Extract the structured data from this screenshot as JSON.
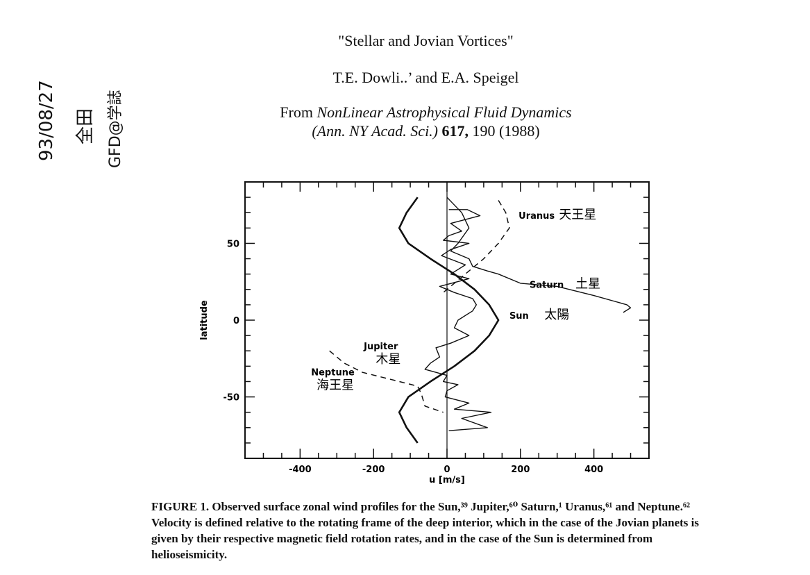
{
  "header": {
    "title": "\"Stellar and Jovian Vortices\"",
    "authors": "T.E. Dowli..’ and E.A. Speigel",
    "source_prefix": "From ",
    "source_book": "NonLinear Astrophysical Fluid Dynamics",
    "source_journal": "(Ann. NY Acad. Sci.)",
    "source_volume": "617,",
    "source_pages_year": "190 (1988)"
  },
  "handwritten_notes": {
    "date": "93/08/27",
    "name": "全田",
    "note": "GFD@学誌"
  },
  "chart_data": {
    "type": "line",
    "xlabel": "u [m/s]",
    "ylabel": "latitude",
    "xlim": [
      -550,
      550
    ],
    "ylim": [
      -90,
      90
    ],
    "x_ticks": [
      -400,
      -200,
      0,
      200,
      400
    ],
    "x_tick_labels": [
      "-400",
      "-200",
      "0",
      "200",
      "400"
    ],
    "y_ticks": [
      -50,
      0,
      50
    ],
    "y_tick_labels": [
      "-50",
      "0",
      "50"
    ],
    "grid": false,
    "series": [
      {
        "name": "Sun",
        "annotation": "太陽",
        "style": "solid-thick",
        "points": [
          [
            -80,
            80
          ],
          [
            -110,
            70
          ],
          [
            -130,
            60
          ],
          [
            -105,
            50
          ],
          [
            -45,
            40
          ],
          [
            20,
            30
          ],
          [
            75,
            20
          ],
          [
            115,
            10
          ],
          [
            140,
            0
          ],
          [
            115,
            -10
          ],
          [
            75,
            -20
          ],
          [
            20,
            -30
          ],
          [
            -45,
            -40
          ],
          [
            -105,
            -50
          ],
          [
            -130,
            -60
          ],
          [
            -110,
            -70
          ],
          [
            -80,
            -80
          ]
        ]
      },
      {
        "name": "Jupiter",
        "annotation": "木星",
        "style": "solid-thin",
        "points": [
          [
            5,
            72
          ],
          [
            55,
            72
          ],
          [
            90,
            68
          ],
          [
            10,
            63
          ],
          [
            40,
            58
          ],
          [
            5,
            55
          ],
          [
            -10,
            52
          ],
          [
            60,
            50
          ],
          [
            10,
            46
          ],
          [
            -15,
            42
          ],
          [
            50,
            36
          ],
          [
            10,
            30
          ],
          [
            60,
            27
          ],
          [
            -20,
            22
          ],
          [
            20,
            18
          ],
          [
            70,
            14
          ],
          [
            80,
            10
          ],
          [
            70,
            6
          ],
          [
            30,
            0
          ],
          [
            20,
            -5
          ],
          [
            60,
            -10
          ],
          [
            10,
            -15
          ],
          [
            -30,
            -18
          ],
          [
            -20,
            -24
          ],
          [
            -45,
            -28
          ],
          [
            -60,
            -32
          ],
          [
            0,
            -36
          ],
          [
            -10,
            -40
          ],
          [
            30,
            -42
          ],
          [
            0,
            -46
          ],
          [
            -5,
            -50
          ],
          [
            60,
            -54
          ],
          [
            20,
            -58
          ],
          [
            120,
            -60
          ],
          [
            40,
            -64
          ],
          [
            110,
            -70
          ],
          [
            5,
            -72
          ]
        ]
      },
      {
        "name": "Saturn",
        "annotation": "土星",
        "style": "solid-thin",
        "points": [
          [
            0,
            80
          ],
          [
            20,
            75
          ],
          [
            40,
            70
          ],
          [
            60,
            60
          ],
          [
            30,
            50
          ],
          [
            10,
            45
          ],
          [
            60,
            40
          ],
          [
            70,
            35
          ],
          [
            110,
            32
          ],
          [
            140,
            30
          ],
          [
            200,
            24
          ],
          [
            300,
            22
          ],
          [
            400,
            16
          ],
          [
            490,
            10
          ],
          [
            500,
            8
          ],
          [
            480,
            5
          ]
        ]
      },
      {
        "name": "Uranus",
        "annotation": "天王星",
        "style": "dashed",
        "points": [
          [
            140,
            78
          ],
          [
            160,
            70
          ],
          [
            170,
            60
          ],
          [
            140,
            50
          ],
          [
            100,
            40
          ],
          [
            60,
            32
          ],
          [
            20,
            24
          ],
          [
            -10,
            18
          ]
        ]
      },
      {
        "name": "Neptune",
        "annotation": "海王星",
        "style": "dashed",
        "points": [
          [
            -320,
            -20
          ],
          [
            -280,
            -28
          ],
          [
            -230,
            -34
          ],
          [
            -180,
            -37
          ],
          [
            -130,
            -40
          ],
          [
            -80,
            -43
          ],
          [
            -70,
            -48
          ],
          [
            -60,
            -56
          ],
          [
            -10,
            -60
          ]
        ]
      }
    ]
  },
  "caption": {
    "label": "FIGURE 1.",
    "text": "Observed surface zonal wind profiles for the Sun,³⁹ Jupiter,⁶⁰ Saturn,¹ Uranus,⁶¹ and Neptune.⁶² Velocity is defined relative to the rotating frame of the deep interior, which in the case of the Jovian planets is given by their respective magnetic field rotation rates, and in the case of the Sun is determined from helioseismicity."
  }
}
